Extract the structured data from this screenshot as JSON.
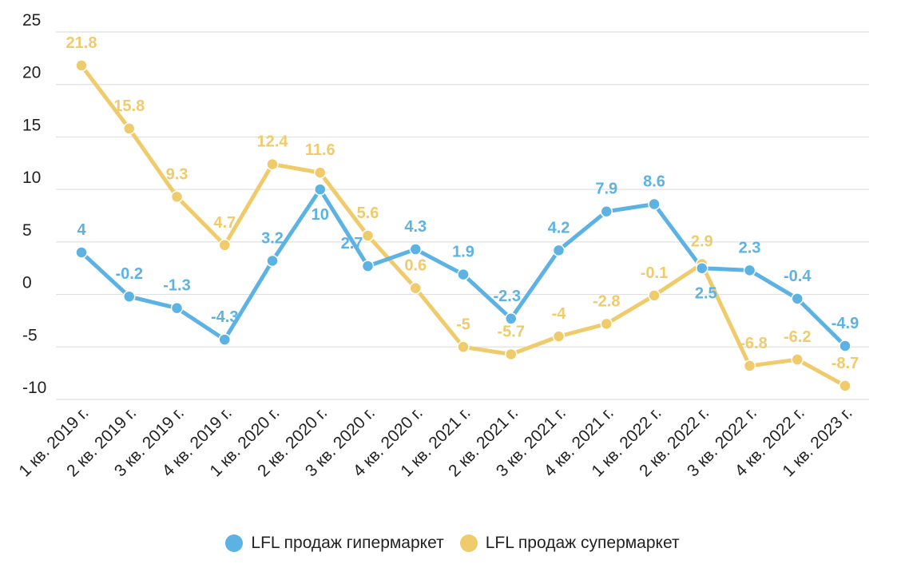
{
  "chart_data": {
    "type": "line",
    "title": "",
    "xlabel": "",
    "ylabel": "",
    "ylim": [
      -10,
      25
    ],
    "yticks": [
      25,
      20,
      15,
      10,
      5,
      0,
      -5,
      -10
    ],
    "grid": true,
    "legend_position": "bottom-center",
    "categories": [
      "1 кв. 2019 г.",
      "2 кв. 2019 г.",
      "3 кв. 2019 г.",
      "4 кв. 2019 г.",
      "1 кв. 2020 г.",
      "2 кв. 2020 г.",
      "3 кв. 2020 г.",
      "4 кв. 2020 г.",
      "1 кв. 2021 г.",
      "2 кв. 2021 г.",
      "3 кв. 2021 г.",
      "4 кв. 2021 г.",
      "1 кв. 2022 г.",
      "2 кв. 2022 г.",
      "3 кв. 2022 г.",
      "4 кв. 2022 г.",
      "1 кв. 2023 г."
    ],
    "series": [
      {
        "name": "LFL продаж гипермаркет",
        "color": "#5cb3e3",
        "values": [
          4,
          -0.2,
          -1.3,
          -4.3,
          3.2,
          10,
          2.7,
          4.3,
          1.9,
          -2.3,
          4.2,
          7.9,
          8.6,
          2.5,
          2.3,
          -0.4,
          -4.9
        ]
      },
      {
        "name": "LFL продаж супермаркет",
        "color": "#f0cb6b",
        "values": [
          21.8,
          15.8,
          9.3,
          4.7,
          12.4,
          11.6,
          5.6,
          0.6,
          -5,
          -5.7,
          -4,
          -2.8,
          -0.1,
          2.9,
          -6.8,
          -6.2,
          -8.7
        ]
      }
    ]
  }
}
